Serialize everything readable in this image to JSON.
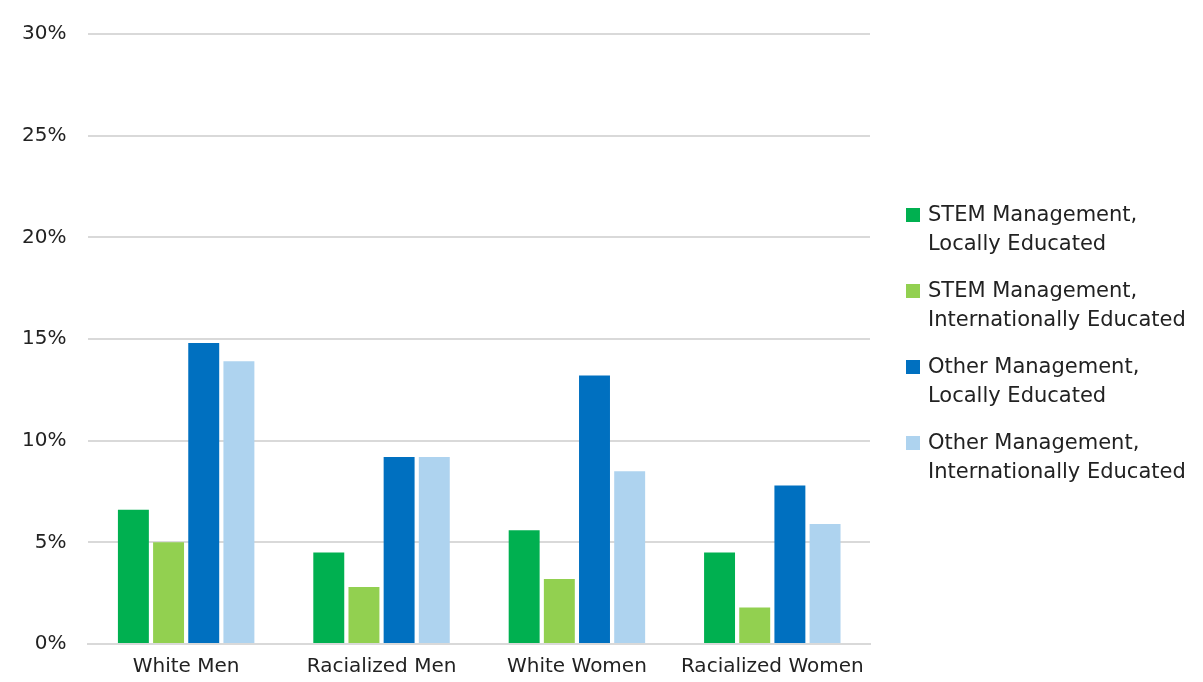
{
  "chart_data": {
    "type": "bar",
    "categories": [
      "White Men",
      "Racialized Men",
      "White Women",
      "Racialized Women"
    ],
    "series": [
      {
        "name": "STEM Management, Locally Educated",
        "color": "#00b050",
        "values": [
          6.6,
          4.5,
          5.6,
          4.5
        ]
      },
      {
        "name": "STEM Management, Internationally Educated",
        "color": "#92d050",
        "values": [
          5.0,
          2.8,
          3.2,
          1.8
        ]
      },
      {
        "name": "Other Management, Locally Educated",
        "color": "#0070c0",
        "values": [
          14.8,
          9.2,
          13.2,
          7.8
        ]
      },
      {
        "name": "Other Management, Internationally Educated",
        "color": "#aed3ef",
        "values": [
          13.9,
          9.2,
          8.5,
          5.9
        ]
      }
    ],
    "ylim": [
      0,
      30
    ],
    "yticks": [
      {
        "value": 0,
        "label": "0%"
      },
      {
        "value": 5,
        "label": "5%"
      },
      {
        "value": 10,
        "label": "10%"
      },
      {
        "value": 15,
        "label": "15%"
      },
      {
        "value": 20,
        "label": "20%"
      },
      {
        "value": 25,
        "label": "25%"
      },
      {
        "value": 30,
        "label": "30%"
      }
    ],
    "grid": "y",
    "legend": "right"
  }
}
